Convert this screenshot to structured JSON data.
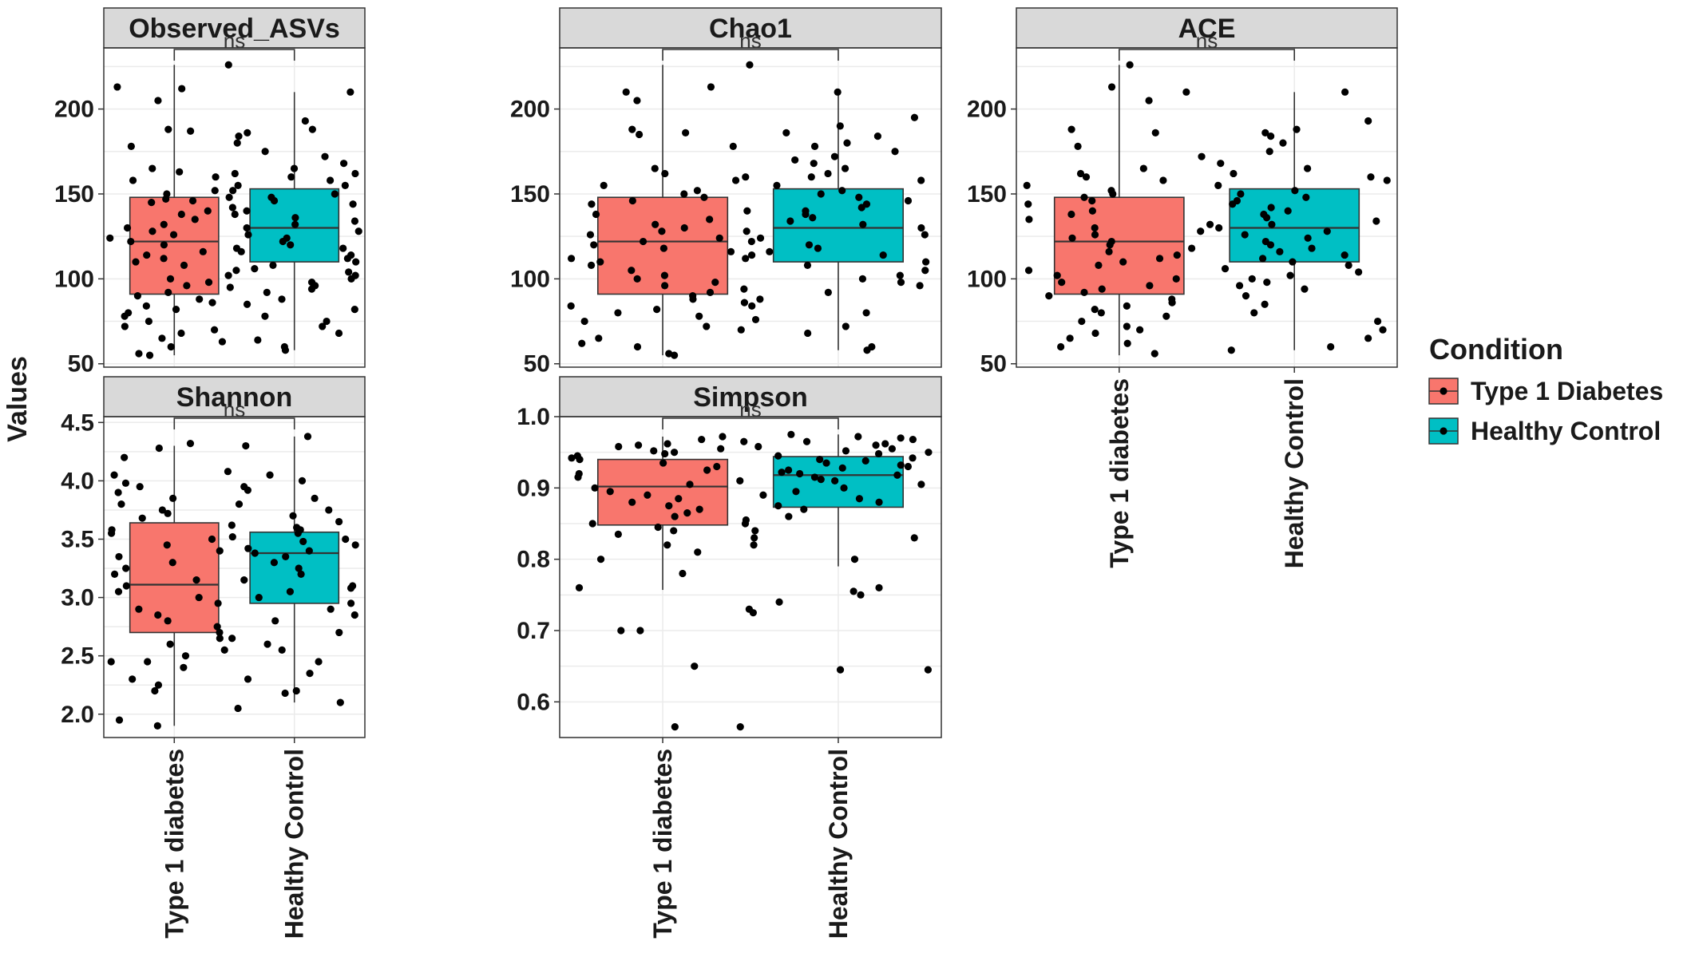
{
  "chart_data": {
    "type": "boxplot",
    "ylabel": "Values",
    "categories": [
      "Type 1 diabetes",
      "Healthy Control"
    ],
    "legend": {
      "title": "Condition",
      "placement": "right",
      "items": [
        {
          "label": "Type 1 Diabetes",
          "color": "#F8766D"
        },
        {
          "label": "Healthy Control",
          "color": "#00BFC4"
        }
      ]
    },
    "grid": true,
    "panels": [
      {
        "title": "Observed_ASVs",
        "ylim": [
          48,
          236
        ],
        "yticks": [
          50,
          100,
          150,
          200
        ],
        "significance": "ns",
        "series": [
          {
            "name": "Type 1 Diabetes",
            "min": 55,
            "q1": 91,
            "median": 122,
            "q3": 148,
            "max": 226,
            "points": [
              226,
              213,
              212,
              205,
              188,
              187,
              178,
              165,
              163,
              162,
              160,
              158,
              155,
              152,
              150,
              148,
              147,
              146,
              145,
              140,
              138,
              135,
              132,
              130,
              128,
              126,
              124,
              122,
              120,
              118,
              116,
              114,
              112,
              110,
              108,
              105,
              102,
              100,
              98,
              96,
              95,
              92,
              90,
              88,
              86,
              84,
              82,
              80,
              78,
              75,
              72,
              70,
              68,
              65,
              63,
              60,
              56,
              55
            ]
          },
          {
            "name": "Healthy Control",
            "min": 58,
            "q1": 110,
            "median": 130,
            "q3": 153,
            "max": 210,
            "points": [
              210,
              193,
              188,
              186,
              184,
              180,
              175,
              172,
              168,
              165,
              162,
              160,
              158,
              155,
              152,
              150,
              148,
              146,
              144,
              142,
              140,
              138,
              136,
              134,
              132,
              130,
              128,
              126,
              124,
              122,
              120,
              118,
              116,
              114,
              112,
              110,
              108,
              106,
              104,
              102,
              100,
              98,
              96,
              94,
              92,
              88,
              85,
              82,
              78,
              75,
              72,
              68,
              64,
              60,
              58
            ]
          }
        ]
      },
      {
        "title": "Chao1",
        "ylim": [
          48,
          236
        ],
        "yticks": [
          50,
          100,
          150,
          200
        ],
        "significance": "ns",
        "series": [
          {
            "name": "Type 1 Diabetes",
            "min": 55,
            "q1": 91,
            "median": 122,
            "q3": 148,
            "max": 226,
            "points": [
              226,
              213,
              210,
              205,
              188,
              186,
              185,
              178,
              165,
              162,
              160,
              158,
              155,
              152,
              150,
              148,
              146,
              144,
              140,
              138,
              135,
              132,
              130,
              128,
              126,
              124,
              122,
              120,
              118,
              116,
              114,
              112,
              110,
              108,
              105,
              102,
              100,
              98,
              96,
              94,
              92,
              90,
              88,
              86,
              84,
              82,
              80,
              78,
              75,
              72,
              70,
              65,
              62,
              60,
              56,
              55
            ]
          },
          {
            "name": "Healthy Control",
            "min": 58,
            "q1": 110,
            "median": 130,
            "q3": 153,
            "max": 210,
            "points": [
              210,
              195,
              190,
              186,
              184,
              180,
              178,
              175,
              172,
              170,
              168,
              165,
              162,
              160,
              158,
              155,
              152,
              150,
              148,
              146,
              144,
              142,
              140,
              138,
              136,
              134,
              132,
              130,
              128,
              126,
              124,
              122,
              120,
              118,
              116,
              114,
              112,
              110,
              108,
              105,
              102,
              100,
              98,
              96,
              92,
              88,
              84,
              80,
              76,
              72,
              68,
              60,
              58
            ]
          }
        ]
      },
      {
        "title": "ACE",
        "ylim": [
          48,
          236
        ],
        "yticks": [
          50,
          100,
          150,
          200
        ],
        "significance": "ns",
        "series": [
          {
            "name": "Type 1 Diabetes",
            "min": 55,
            "q1": 91,
            "median": 122,
            "q3": 148,
            "max": 226,
            "points": [
              226,
              213,
              210,
              205,
              188,
              186,
              178,
              165,
              162,
              160,
              158,
              155,
              152,
              150,
              148,
              146,
              144,
              140,
              138,
              135,
              132,
              130,
              128,
              126,
              124,
              122,
              120,
              118,
              116,
              114,
              112,
              110,
              108,
              105,
              102,
              100,
              98,
              96,
              94,
              92,
              90,
              88,
              86,
              84,
              82,
              80,
              78,
              75,
              72,
              70,
              68,
              65,
              62,
              60,
              56
            ]
          },
          {
            "name": "Healthy Control",
            "min": 58,
            "q1": 110,
            "median": 130,
            "q3": 153,
            "max": 210,
            "points": [
              210,
              193,
              188,
              186,
              184,
              180,
              175,
              172,
              168,
              165,
              162,
              160,
              158,
              155,
              152,
              150,
              148,
              146,
              144,
              142,
              140,
              138,
              136,
              134,
              132,
              130,
              128,
              126,
              124,
              122,
              120,
              118,
              116,
              114,
              112,
              110,
              108,
              106,
              104,
              102,
              100,
              98,
              96,
              94,
              90,
              85,
              80,
              75,
              70,
              65,
              60,
              58
            ]
          }
        ]
      },
      {
        "title": "Shannon",
        "ylim": [
          1.8,
          4.55
        ],
        "yticks": [
          2.0,
          2.5,
          3.0,
          3.5,
          4.0,
          4.5
        ],
        "significance": "ns",
        "series": [
          {
            "name": "Type 1 Diabetes",
            "min": 1.9,
            "q1": 2.7,
            "median": 3.11,
            "q3": 3.64,
            "max": 4.3,
            "points": [
              4.32,
              4.28,
              4.2,
              4.08,
              4.05,
              3.98,
              3.95,
              3.9,
              3.85,
              3.8,
              3.75,
              3.72,
              3.68,
              3.62,
              3.58,
              3.55,
              3.5,
              3.45,
              3.4,
              3.35,
              3.3,
              3.25,
              3.2,
              3.15,
              3.1,
              3.05,
              3.0,
              2.95,
              2.9,
              2.85,
              2.8,
              2.75,
              2.7,
              2.65,
              2.6,
              2.55,
              2.5,
              2.45,
              2.45,
              2.4,
              2.3,
              2.25,
              2.2,
              2.05,
              1.95,
              1.9
            ]
          },
          {
            "name": "Healthy Control",
            "min": 2.1,
            "q1": 2.95,
            "median": 3.38,
            "q3": 3.56,
            "max": 4.38,
            "points": [
              4.38,
              4.3,
              4.05,
              4.0,
              3.95,
              3.92,
              3.85,
              3.8,
              3.75,
              3.7,
              3.65,
              3.6,
              3.58,
              3.55,
              3.52,
              3.5,
              3.48,
              3.45,
              3.42,
              3.4,
              3.38,
              3.35,
              3.3,
              3.25,
              3.2,
              3.15,
              3.1,
              3.08,
              3.05,
              3.0,
              2.95,
              2.9,
              2.85,
              2.8,
              2.7,
              2.65,
              2.6,
              2.55,
              2.45,
              2.35,
              2.3,
              2.2,
              2.18,
              2.1
            ]
          }
        ]
      },
      {
        "title": "Simpson",
        "ylim": [
          0.55,
          1.0
        ],
        "yticks": [
          0.6,
          0.7,
          0.8,
          0.9,
          1.0
        ],
        "significance": "ns",
        "series": [
          {
            "name": "Type 1 Diabetes",
            "min": 0.757,
            "q1": 0.848,
            "median": 0.902,
            "q3": 0.94,
            "max": 0.972,
            "points": [
              0.972,
              0.968,
              0.965,
              0.962,
              0.96,
              0.958,
              0.955,
              0.952,
              0.95,
              0.948,
              0.945,
              0.942,
              0.94,
              0.935,
              0.93,
              0.925,
              0.92,
              0.915,
              0.91,
              0.905,
              0.9,
              0.895,
              0.89,
              0.885,
              0.88,
              0.875,
              0.87,
              0.865,
              0.86,
              0.855,
              0.85,
              0.845,
              0.84,
              0.835,
              0.83,
              0.82,
              0.81,
              0.8,
              0.78,
              0.76,
              0.7,
              0.7,
              0.65,
              0.565,
              0.565
            ]
          },
          {
            "name": "Healthy Control",
            "min": 0.79,
            "q1": 0.873,
            "median": 0.918,
            "q3": 0.944,
            "max": 0.975,
            "points": [
              0.975,
              0.972,
              0.97,
              0.968,
              0.965,
              0.962,
              0.96,
              0.958,
              0.955,
              0.952,
              0.95,
              0.948,
              0.945,
              0.942,
              0.94,
              0.938,
              0.935,
              0.932,
              0.93,
              0.928,
              0.925,
              0.922,
              0.92,
              0.918,
              0.915,
              0.912,
              0.91,
              0.905,
              0.9,
              0.895,
              0.89,
              0.885,
              0.88,
              0.875,
              0.87,
              0.86,
              0.85,
              0.84,
              0.83,
              0.82,
              0.8,
              0.76,
              0.755,
              0.75,
              0.74,
              0.73,
              0.725,
              0.645,
              0.645
            ]
          }
        ]
      }
    ]
  }
}
